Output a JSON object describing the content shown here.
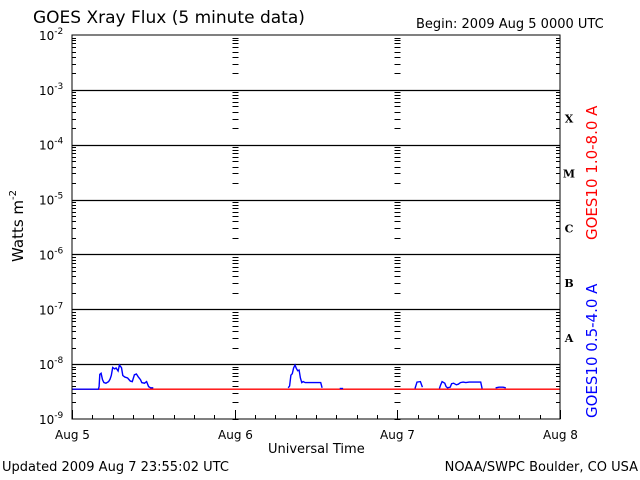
{
  "title": "GOES Xray Flux (5 minute data)",
  "begin_label": "Begin:  2009 Aug 5 0000 UTC",
  "updated": "Updated 2009 Aug  7 23:55:02 UTC",
  "credit": "NOAA/SWPC Boulder, CO USA",
  "colors": {
    "long": "#ff0000",
    "short": "#0000ff",
    "axis": "#000000"
  },
  "chart_data": {
    "type": "line",
    "xlabel": "Universal Time",
    "ylabel": "Watts m",
    "ylabel_exponent": "-2",
    "y_scale": "log",
    "ylim": [
      1e-09,
      0.01
    ],
    "y_ticks": [
      {
        "base": "10",
        "exp": "-2"
      },
      {
        "base": "10",
        "exp": "-3"
      },
      {
        "base": "10",
        "exp": "-4"
      },
      {
        "base": "10",
        "exp": "-5"
      },
      {
        "base": "10",
        "exp": "-6"
      },
      {
        "base": "10",
        "exp": "-7"
      },
      {
        "base": "10",
        "exp": "-8"
      },
      {
        "base": "10",
        "exp": "-9"
      }
    ],
    "x_unit": "hours since 2009 Aug 5 0000 UTC",
    "xlim": [
      0,
      72
    ],
    "x_ticks": [
      {
        "label": "Aug 5",
        "t": 0
      },
      {
        "label": "Aug 6",
        "t": 24
      },
      {
        "label": "Aug 7",
        "t": 48
      },
      {
        "label": "Aug 8",
        "t": 72
      }
    ],
    "flare_classes": [
      {
        "label": "X",
        "value": 0.0003
      },
      {
        "label": "M",
        "value": 3e-05
      },
      {
        "label": "C",
        "value": 3e-06
      },
      {
        "label": "B",
        "value": 3e-07
      },
      {
        "label": "A",
        "value": 3e-08
      }
    ],
    "grid": true,
    "series": [
      {
        "name": "GOES10 1.0-8.0 A",
        "color": "#ff0000",
        "points": [
          [
            0,
            3.5e-09
          ],
          [
            72,
            3.5e-09
          ]
        ]
      },
      {
        "name": "GOES10 0.5-4.0 A",
        "color": "#0000ff",
        "segments": [
          [
            [
              0,
              3.5e-09
            ],
            [
              3.9,
              3.5e-09
            ],
            [
              4.0,
              3.9e-09
            ],
            [
              4.1,
              6.5e-09
            ],
            [
              4.3,
              6.8e-09
            ],
            [
              4.5,
              5.2e-09
            ],
            [
              4.7,
              4.6e-09
            ],
            [
              5.0,
              4.5e-09
            ],
            [
              5.4,
              4.8e-09
            ],
            [
              5.6,
              5.3e-09
            ],
            [
              5.8,
              6.2e-09
            ],
            [
              6.0,
              8.7e-09
            ],
            [
              6.3,
              8.2e-09
            ],
            [
              6.5,
              8.5e-09
            ],
            [
              6.8,
              7.5e-09
            ],
            [
              7.0,
              9.6e-09
            ],
            [
              7.3,
              8.6e-09
            ],
            [
              7.5,
              6.2e-09
            ],
            [
              7.8,
              5.8e-09
            ],
            [
              8.2,
              5.6e-09
            ],
            [
              8.6,
              4.9e-09
            ],
            [
              8.9,
              4.8e-09
            ],
            [
              9.2,
              6.4e-09
            ],
            [
              9.5,
              6.6e-09
            ],
            [
              9.8,
              5.8e-09
            ],
            [
              10.1,
              5.2e-09
            ],
            [
              10.3,
              4.6e-09
            ],
            [
              10.7,
              4.5e-09
            ],
            [
              11.0,
              4.8e-09
            ],
            [
              11.3,
              3.9e-09
            ],
            [
              11.6,
              3.7e-09
            ],
            [
              12.0,
              3.7e-09
            ]
          ],
          [
            [
              31.9,
              3.7e-09
            ],
            [
              32.1,
              4e-09
            ],
            [
              32.3,
              6.3e-09
            ],
            [
              32.5,
              6.7e-09
            ],
            [
              32.7,
              8.5e-09
            ],
            [
              32.9,
              9.6e-09
            ],
            [
              33.1,
              8.4e-09
            ],
            [
              33.3,
              7.6e-09
            ],
            [
              33.5,
              7.8e-09
            ],
            [
              33.7,
              5.6e-09
            ],
            [
              33.9,
              4.6e-09
            ],
            [
              34.1,
              4.8e-09
            ],
            [
              34.4,
              4.6e-09
            ],
            [
              34.8,
              4.6e-09
            ],
            [
              35.2,
              4.6e-09
            ],
            [
              35.6,
              4.6e-09
            ],
            [
              36.0,
              4.6e-09
            ],
            [
              36.4,
              4.6e-09
            ],
            [
              36.7,
              4.6e-09
            ],
            [
              36.9,
              3.7e-09
            ]
          ],
          [
            [
              39.5,
              3.6e-09
            ],
            [
              40.0,
              3.6e-09
            ]
          ],
          [
            [
              50.6,
              3.6e-09
            ],
            [
              50.9,
              4.7e-09
            ],
            [
              51.4,
              4.8e-09
            ],
            [
              51.7,
              3.8e-09
            ]
          ],
          [
            [
              54.2,
              3.6e-09
            ],
            [
              54.4,
              4.2e-09
            ],
            [
              54.6,
              4.8e-09
            ],
            [
              55.0,
              4.5e-09
            ],
            [
              55.2,
              3.9e-09
            ],
            [
              55.4,
              3.7e-09
            ],
            [
              55.8,
              3.8e-09
            ],
            [
              56.0,
              4.4e-09
            ],
            [
              56.3,
              4.5e-09
            ],
            [
              56.7,
              4.2e-09
            ],
            [
              57.0,
              4.3e-09
            ],
            [
              57.3,
              4.6e-09
            ],
            [
              57.7,
              4.7e-09
            ],
            [
              58.1,
              4.6e-09
            ],
            [
              58.6,
              4.7e-09
            ],
            [
              59.1,
              4.7e-09
            ],
            [
              59.6,
              4.7e-09
            ],
            [
              60.0,
              4.7e-09
            ],
            [
              60.3,
              4.7e-09
            ],
            [
              60.5,
              3.6e-09
            ]
          ],
          [
            [
              62.5,
              3.7e-09
            ],
            [
              63.0,
              3.8e-09
            ],
            [
              63.6,
              3.8e-09
            ],
            [
              64.0,
              3.7e-09
            ]
          ]
        ]
      }
    ]
  }
}
